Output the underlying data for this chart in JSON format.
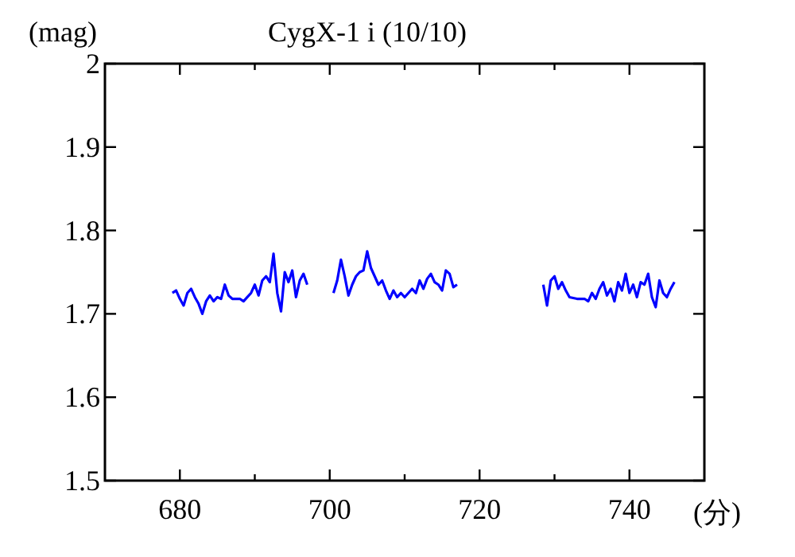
{
  "chart_data": {
    "type": "line",
    "title": "CygX-1 i (10/10)",
    "xlabel": "(分)",
    "ylabel": "(mag)",
    "xlim": [
      670,
      750
    ],
    "ylim": [
      1.5,
      2
    ],
    "xticks": [
      680,
      {
        "value": 690,
        "label": null
      },
      700,
      {
        "value": 710,
        "label": null
      },
      720,
      {
        "value": 730,
        "label": null
      },
      740
    ],
    "yticks": [
      1.5,
      1.6,
      1.7,
      1.8,
      1.9,
      2
    ],
    "grid": false,
    "marker": "none",
    "line_style": "solid",
    "series": [
      {
        "color": "#0000ff",
        "x": [
          679,
          679.5,
          680,
          680.5,
          681,
          681.5,
          682,
          682.5,
          683,
          683.5,
          684,
          684.5,
          685,
          685.5,
          686,
          686.5,
          687,
          688,
          688.5,
          689,
          689.5,
          690,
          690.5,
          691,
          691.5,
          692,
          692.5,
          693,
          693.5,
          694,
          694.5,
          695,
          695.5,
          696,
          696.5,
          697
        ],
        "values": [
          1.725,
          1.728,
          1.718,
          1.71,
          1.725,
          1.73,
          1.72,
          1.712,
          1.7,
          1.715,
          1.722,
          1.715,
          1.72,
          1.718,
          1.735,
          1.722,
          1.718,
          1.718,
          1.715,
          1.72,
          1.725,
          1.735,
          1.722,
          1.74,
          1.745,
          1.738,
          1.772,
          1.725,
          1.703,
          1.75,
          1.738,
          1.752,
          1.72,
          1.74,
          1.748,
          1.735
        ]
      },
      {
        "color": "#0000ff",
        "x": [
          700.5,
          701,
          701.5,
          702,
          702.5,
          703,
          703.5,
          704,
          704.5,
          705,
          705.5,
          706,
          706.5,
          707,
          707.5,
          708,
          708.5,
          709,
          709.5,
          710,
          710.5,
          711,
          711.5,
          712,
          712.5,
          713,
          713.5,
          714,
          714.5,
          715,
          715.5,
          716,
          716.5,
          717
        ],
        "values": [
          1.725,
          1.74,
          1.765,
          1.745,
          1.722,
          1.735,
          1.745,
          1.75,
          1.752,
          1.775,
          1.755,
          1.745,
          1.735,
          1.74,
          1.728,
          1.718,
          1.728,
          1.72,
          1.725,
          1.72,
          1.725,
          1.73,
          1.725,
          1.74,
          1.73,
          1.742,
          1.748,
          1.738,
          1.735,
          1.728,
          1.752,
          1.748,
          1.732,
          1.735
        ]
      },
      {
        "color": "#0000ff",
        "x": [
          728.5,
          729,
          729.5,
          730,
          730.5,
          731,
          731.5,
          732,
          733,
          734,
          734.5,
          735,
          735.5,
          736,
          736.5,
          737,
          737.5,
          738,
          738.5,
          739,
          739.5,
          740,
          740.5,
          741,
          741.5,
          742,
          742.5,
          743,
          743.5,
          744,
          744.5,
          745,
          745.5,
          746
        ],
        "values": [
          1.735,
          1.71,
          1.74,
          1.745,
          1.73,
          1.738,
          1.728,
          1.72,
          1.718,
          1.718,
          1.715,
          1.725,
          1.718,
          1.73,
          1.738,
          1.722,
          1.73,
          1.715,
          1.738,
          1.728,
          1.748,
          1.725,
          1.735,
          1.72,
          1.738,
          1.735,
          1.748,
          1.72,
          1.708,
          1.74,
          1.725,
          1.72,
          1.73,
          1.738
        ]
      }
    ]
  }
}
